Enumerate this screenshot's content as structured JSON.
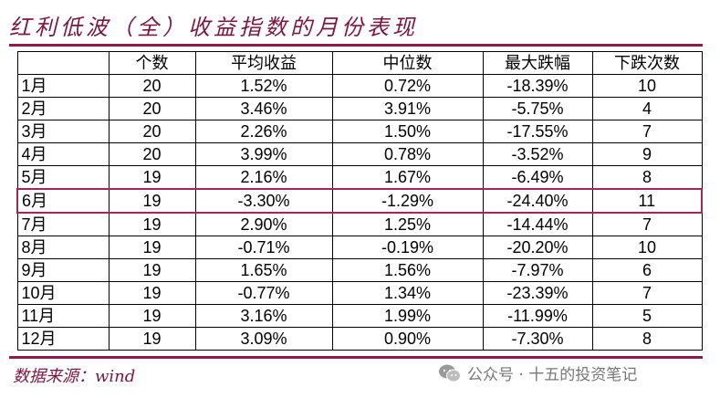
{
  "title": "红利低波（全）收益指数的月份表现",
  "table": {
    "headers": [
      "",
      "个数",
      "平均收益",
      "中位数",
      "最大跌幅",
      "下跌次数"
    ],
    "rows": [
      [
        "1月",
        "20",
        "1.52%",
        "0.72%",
        "-18.39%",
        "10"
      ],
      [
        "2月",
        "20",
        "3.46%",
        "3.91%",
        "-5.75%",
        "4"
      ],
      [
        "3月",
        "20",
        "2.26%",
        "1.50%",
        "-17.55%",
        "7"
      ],
      [
        "4月",
        "20",
        "3.99%",
        "0.78%",
        "-3.52%",
        "9"
      ],
      [
        "5月",
        "19",
        "2.16%",
        "1.67%",
        "-6.49%",
        "8"
      ],
      [
        "6月",
        "19",
        "-3.30%",
        "-1.29%",
        "-24.40%",
        "11"
      ],
      [
        "7月",
        "19",
        "2.90%",
        "1.25%",
        "-14.44%",
        "7"
      ],
      [
        "8月",
        "19",
        "-0.71%",
        "-0.19%",
        "-20.20%",
        "10"
      ],
      [
        "9月",
        "19",
        "1.65%",
        "1.56%",
        "-7.97%",
        "6"
      ],
      [
        "10月",
        "19",
        "-0.77%",
        "1.34%",
        "-23.39%",
        "7"
      ],
      [
        "11月",
        "19",
        "3.16%",
        "1.99%",
        "-11.99%",
        "5"
      ],
      [
        "12月",
        "19",
        "3.09%",
        "0.90%",
        "-7.30%",
        "8"
      ]
    ],
    "highlighted_row": 5
  },
  "source": "数据来源：wind",
  "watermark": "公众号 · 十五的投资笔记",
  "watermark_icon": "wechat-icon",
  "colors": {
    "accent": "#8c1d4b",
    "highlight": "#a3255a"
  }
}
